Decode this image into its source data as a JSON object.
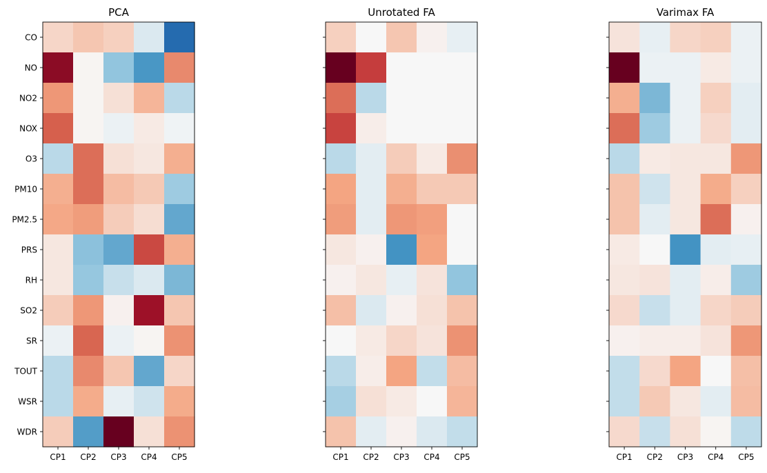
{
  "chart_data": [
    {
      "type": "heatmap",
      "title": "PCA",
      "rows": [
        "CO",
        "NO",
        "NO2",
        "NOX",
        "O3",
        "PM10",
        "PM2.5",
        "PRS",
        "RH",
        "SO2",
        "SR",
        "TOUT",
        "WSR",
        "WDR"
      ],
      "cols": [
        "CP1",
        "CP2",
        "CP3",
        "CP4",
        "CP5"
      ],
      "values": [
        [
          0.1,
          0.15,
          0.12,
          -0.07,
          -0.72
        ],
        [
          0.88,
          0.01,
          -0.25,
          -0.48,
          0.35
        ],
        [
          0.3,
          0.01,
          0.07,
          0.2,
          -0.15
        ],
        [
          0.5,
          0.01,
          -0.03,
          0.04,
          -0.02
        ],
        [
          -0.15,
          0.45,
          0.07,
          0.05,
          0.22
        ],
        [
          0.22,
          0.45,
          0.18,
          0.14,
          -0.22
        ],
        [
          0.24,
          0.28,
          0.13,
          0.08,
          -0.4
        ],
        [
          0.05,
          -0.27,
          -0.4,
          0.58,
          0.22
        ],
        [
          0.05,
          -0.24,
          -0.12,
          -0.07,
          -0.32
        ],
        [
          0.13,
          0.3,
          0.02,
          0.82,
          0.15
        ],
        [
          -0.03,
          0.48,
          -0.03,
          0.01,
          0.32
        ],
        [
          -0.15,
          0.35,
          0.15,
          -0.4,
          0.1
        ],
        [
          -0.15,
          0.23,
          -0.04,
          -0.1,
          0.23
        ],
        [
          0.13,
          -0.45,
          1.0,
          0.07,
          0.32
        ]
      ],
      "colormap": "RdBu_r",
      "vmin": -1,
      "vmax": 1,
      "legend": "none",
      "grid": false
    },
    {
      "type": "heatmap",
      "title": "Unrotated FA",
      "rows": [
        "CO",
        "NO",
        "NO2",
        "NOX",
        "O3",
        "PM10",
        "PM2.5",
        "PRS",
        "RH",
        "SO2",
        "SR",
        "TOUT",
        "WSR",
        "WDR"
      ],
      "cols": [
        "CP1",
        "CP2",
        "CP3",
        "CP4",
        "CP5"
      ],
      "values": [
        [
          0.12,
          0.0,
          0.15,
          0.02,
          -0.04
        ],
        [
          1.0,
          0.62,
          0.0,
          0.0,
          0.0
        ],
        [
          0.45,
          -0.15,
          0.0,
          0.0,
          0.0
        ],
        [
          0.6,
          0.03,
          0.0,
          0.0,
          0.0
        ],
        [
          -0.15,
          -0.05,
          0.13,
          0.04,
          0.33
        ],
        [
          0.25,
          -0.05,
          0.22,
          0.14,
          0.14
        ],
        [
          0.28,
          -0.05,
          0.3,
          0.27,
          0.0
        ],
        [
          0.05,
          0.02,
          -0.5,
          0.25,
          0.0
        ],
        [
          0.02,
          0.05,
          -0.04,
          0.06,
          -0.25
        ],
        [
          0.17,
          -0.07,
          0.02,
          0.07,
          0.16
        ],
        [
          0.0,
          0.04,
          0.1,
          0.06,
          0.32
        ],
        [
          -0.15,
          0.03,
          0.25,
          -0.13,
          0.18
        ],
        [
          -0.2,
          0.07,
          0.04,
          0.0,
          0.2
        ],
        [
          0.16,
          -0.05,
          0.02,
          -0.07,
          -0.13
        ]
      ],
      "colormap": "RdBu_r",
      "vmin": -1,
      "vmax": 1,
      "legend": "none",
      "grid": false
    },
    {
      "type": "heatmap",
      "title": "Varimax FA",
      "rows": [
        "CO",
        "NO",
        "NO2",
        "NOX",
        "O3",
        "PM10",
        "PM2.5",
        "PRS",
        "RH",
        "SO2",
        "SR",
        "TOUT",
        "WSR",
        "WDR"
      ],
      "cols": [
        "CP1",
        "CP2",
        "CP3",
        "CP4",
        "CP5"
      ],
      "values": [
        [
          0.06,
          -0.04,
          0.1,
          0.12,
          -0.03
        ],
        [
          1.0,
          -0.03,
          -0.03,
          0.04,
          -0.03
        ],
        [
          0.22,
          -0.32,
          -0.03,
          0.12,
          -0.05
        ],
        [
          0.45,
          -0.22,
          -0.03,
          0.09,
          -0.05
        ],
        [
          -0.15,
          0.04,
          0.05,
          0.05,
          0.3
        ],
        [
          0.16,
          -0.1,
          0.05,
          0.23,
          0.12
        ],
        [
          0.16,
          -0.05,
          0.05,
          0.45,
          0.02
        ],
        [
          0.04,
          0.0,
          -0.5,
          -0.05,
          -0.04
        ],
        [
          0.05,
          0.06,
          -0.05,
          0.03,
          -0.22
        ],
        [
          0.09,
          -0.12,
          -0.05,
          0.1,
          0.13
        ],
        [
          0.02,
          0.03,
          0.03,
          0.06,
          0.3
        ],
        [
          -0.13,
          0.09,
          0.25,
          0.0,
          0.17
        ],
        [
          -0.13,
          0.14,
          0.05,
          -0.05,
          0.18
        ],
        [
          0.09,
          -0.12,
          0.07,
          0.01,
          -0.14
        ]
      ],
      "colormap": "RdBu_r",
      "vmin": -1,
      "vmax": 1,
      "legend": "none",
      "grid": false
    }
  ]
}
